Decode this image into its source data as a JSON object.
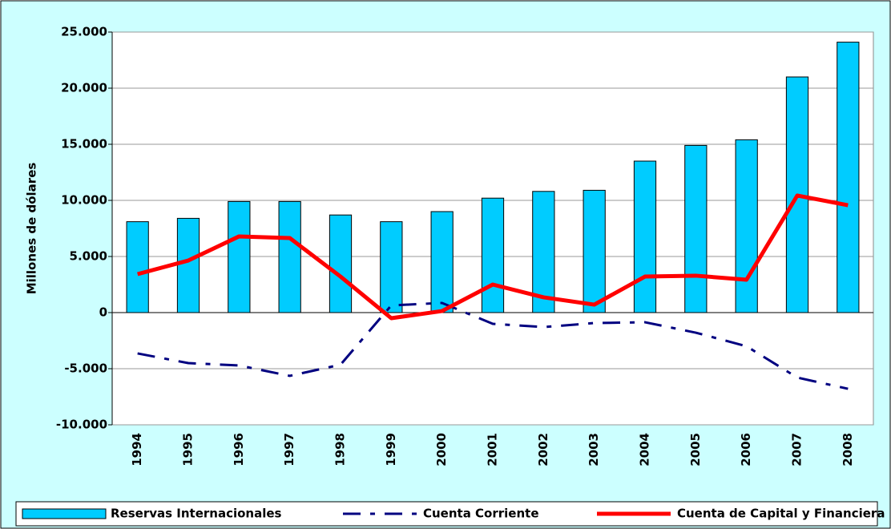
{
  "chart_data": {
    "type": "bar_line",
    "y_label": "Millones de dólares",
    "categories": [
      "1994",
      "1995",
      "1996",
      "1997",
      "1998",
      "1999",
      "2000",
      "2001",
      "2002",
      "2003",
      "2004",
      "2005",
      "2006",
      "2007",
      "2008"
    ],
    "series": [
      {
        "name": "Reservas Internacionales",
        "type": "bar",
        "color": "#00ccff",
        "values": [
          8100,
          8400,
          9900,
          9900,
          8700,
          8100,
          9000,
          10200,
          10800,
          10900,
          13500,
          14900,
          15400,
          21000,
          24100
        ]
      },
      {
        "name": "Cuenta Corriente",
        "type": "line",
        "dashed": true,
        "color": "#000080",
        "values": [
          -3640,
          -4500,
          -4710,
          -5640,
          -4640,
          640,
          860,
          -1000,
          -1290,
          -930,
          -860,
          -1790,
          -3000,
          -5790,
          -6790
        ]
      },
      {
        "name": "Cuenta de Capital y Financiera",
        "type": "line",
        "dashed": false,
        "color": "#ff0000",
        "values": [
          3430,
          4640,
          6790,
          6640,
          3210,
          -500,
          140,
          2500,
          1360,
          710,
          3210,
          3290,
          2930,
          10430,
          9570
        ]
      }
    ],
    "ylim": [
      -10000,
      25000
    ],
    "yticks": [
      {
        "value": -10000,
        "label": "-10.000"
      },
      {
        "value": -5000,
        "label": "-5.000"
      },
      0,
      {
        "value": 5000,
        "label": "5.000"
      },
      {
        "value": 10000,
        "label": "10.000"
      },
      {
        "value": 15000,
        "label": "15.000"
      },
      {
        "value": 20000,
        "label": "20.000"
      },
      {
        "value": 25000,
        "label": "25.000"
      }
    ],
    "grid": true,
    "legend": "bottom"
  }
}
